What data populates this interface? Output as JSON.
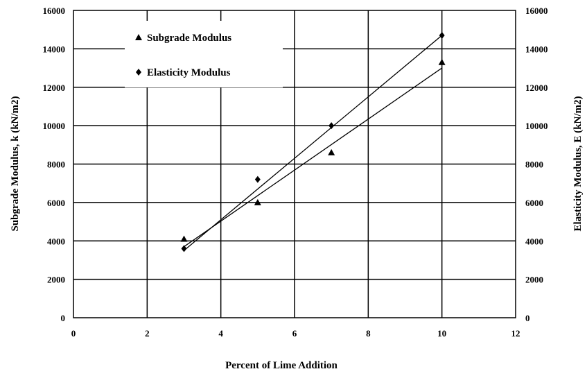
{
  "chart_data": {
    "type": "scatter",
    "xlabel": "Percent of Lime Addition",
    "ylabel_left": "Subgrade Modulus, k (kN/m2)",
    "ylabel_right": "Elasticity Modulus, E (kN/m2)",
    "xlim": [
      0,
      12
    ],
    "ylim": [
      0,
      16000
    ],
    "x_ticks": [
      0,
      2,
      4,
      6,
      8,
      10,
      12
    ],
    "y_ticks": [
      0,
      2000,
      4000,
      6000,
      8000,
      10000,
      12000,
      14000,
      16000
    ],
    "x_tick_labels": [
      "0",
      "2",
      "4",
      "6",
      "8",
      "10",
      "12"
    ],
    "y_tick_labels": [
      "0",
      "2000",
      "4000",
      "6000",
      "8000",
      "10000",
      "12000",
      "14000",
      "16000"
    ],
    "grid": true,
    "legend_position": "top-left",
    "series": [
      {
        "name": "Subgrade Modulus",
        "marker": "triangle",
        "x": [
          3,
          5,
          7,
          10
        ],
        "y": [
          4100,
          6000,
          8600,
          13300
        ],
        "trendline": [
          [
            3,
            3700
          ],
          [
            10,
            13000
          ]
        ]
      },
      {
        "name": "Elasticity Modulus",
        "marker": "diamond",
        "x": [
          3,
          5,
          7,
          10
        ],
        "y": [
          3600,
          7200,
          10000,
          14700
        ],
        "trendline": [
          [
            3,
            3500
          ],
          [
            10,
            14700
          ]
        ]
      }
    ]
  }
}
